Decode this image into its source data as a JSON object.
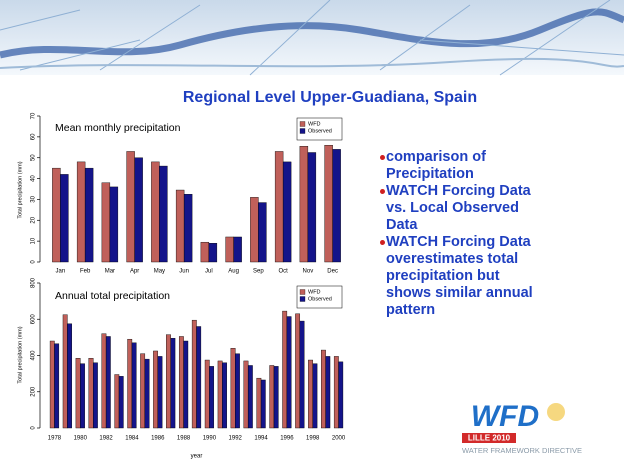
{
  "title": "Regional Level Upper-Guadiana, Spain",
  "bullets": [
    {
      "lines": [
        "comparison of",
        "Precipitation"
      ]
    },
    {
      "lines": [
        "WATCH Forcing Data",
        "vs. Local Observed",
        "Data"
      ]
    },
    {
      "lines": [
        "WATCH Forcing Data",
        "overestimates total",
        "precipitation but",
        "shows similar annual",
        "pattern"
      ]
    }
  ],
  "logo": {
    "main": "WFD",
    "event": "LILLE 2010",
    "tagline": "WATER FRAMEWORK DIRECTIVE"
  },
  "chart_data": [
    {
      "type": "bar",
      "title": "Mean monthly precipitation",
      "y_label": "Total precipitation (mm)",
      "categories": [
        "Jan",
        "Feb",
        "Mar",
        "Apr",
        "May",
        "Jun",
        "Jul",
        "Aug",
        "Sep",
        "Oct",
        "Nov",
        "Dec"
      ],
      "series": [
        {
          "name": "WFD",
          "color": "#c0605a",
          "values": [
            45,
            48,
            38,
            53,
            48,
            34.5,
            9.5,
            12,
            31,
            53,
            55.5,
            56
          ]
        },
        {
          "name": "Observed",
          "color": "#14148a",
          "values": [
            42,
            45,
            36,
            50,
            46,
            32.5,
            9,
            12,
            28.5,
            48,
            52.5,
            54
          ]
        }
      ],
      "ylim": [
        0,
        70
      ],
      "yticks": [
        0,
        10,
        20,
        30,
        40,
        50,
        60,
        70
      ],
      "legend": "top-right"
    },
    {
      "type": "bar",
      "title": "Annual total precipitation",
      "y_label": "Total precipitation (mm)",
      "x_label": "year",
      "categories": [
        "1978",
        null,
        "1980",
        null,
        "1982",
        null,
        "1984",
        null,
        "1986",
        null,
        "1988",
        null,
        "1990",
        null,
        "1992",
        null,
        "1994",
        null,
        "1996",
        null,
        "1998",
        null,
        "2000"
      ],
      "series": [
        {
          "name": "WFD",
          "color": "#c0605a",
          "values": [
            480,
            625,
            385,
            385,
            520,
            295,
            490,
            410,
            425,
            515,
            505,
            595,
            375,
            370,
            440,
            370,
            275,
            345,
            645,
            630,
            375,
            430,
            395
          ]
        },
        {
          "name": "Observed",
          "color": "#14148a",
          "values": [
            465,
            575,
            355,
            360,
            505,
            285,
            470,
            380,
            395,
            495,
            480,
            560,
            340,
            360,
            410,
            345,
            265,
            340,
            615,
            590,
            355,
            395,
            365
          ]
        }
      ],
      "ylim": [
        0,
        800
      ],
      "yticks": [
        0,
        200,
        400,
        600,
        800
      ],
      "legend": "top-right"
    }
  ]
}
